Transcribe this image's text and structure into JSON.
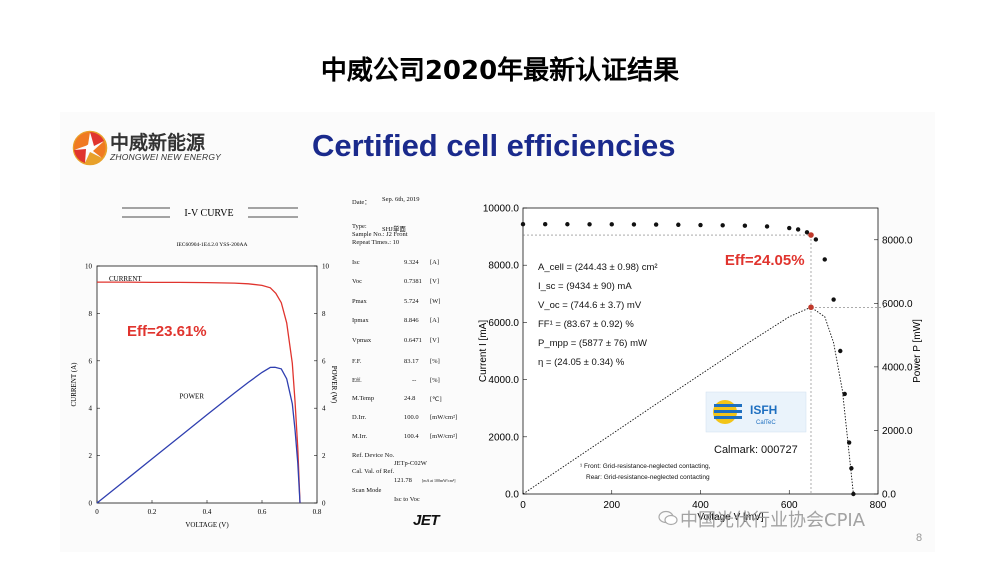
{
  "slide": {
    "title": "中威公司2020年最新认证结果",
    "page_number": "8",
    "watermark": "中国光伏行业协会CPIA"
  },
  "header": {
    "logo_cn": "中威新能源",
    "logo_en": "ZHONGWEI NEW ENERGY",
    "certified_title": "Certified cell efficiencies"
  },
  "left_report": {
    "heading": "I-V  CURVE",
    "standard": "IEC60904-1E4.2.0  YSS-200AA",
    "meta": {
      "date_label": "Date：",
      "date_value": "Sep. 6th, 2019",
      "type_label": "Type:",
      "type_value": "SHJ単面",
      "sample_label": "Sample No.: J2 Front",
      "repeat_label": "Repeat Times.: 10",
      "isc_label": "Isc",
      "isc_value": "9.324",
      "isc_unit": "[A]",
      "voc_label": "Voc",
      "voc_value": "0.7381",
      "voc_unit": "[V]",
      "pmax_label": "Pmax",
      "pmax_value": "5.724",
      "pmax_unit": "[W]",
      "ipmax_label": "Ipmax",
      "ipmax_value": "8.846",
      "ipmax_unit": "[A]",
      "vpmax_label": "Vpmax",
      "vpmax_value": "0.6471",
      "vpmax_unit": "[V]",
      "ff_label": "F.F.",
      "ff_value": "83.17",
      "ff_unit": "[%]",
      "eff_label": "Eff.",
      "eff_value": "--",
      "eff_unit": "[%]",
      "mtemp_label": "M.Temp",
      "mtemp_value": "24.8",
      "mtemp_unit": "[℃]",
      "dirr_label": "D.Irr.",
      "dirr_value": "100.0",
      "dirr_unit": "[mW/cm²]",
      "mirr_label": "M.Irr.",
      "mirr_value": "100.4",
      "mirr_unit": "[mW/cm²]",
      "ref_label": "Ref. Device No.",
      "ref_value": "JETp-C02W",
      "cal_label": "Cal. Val. of Ref.",
      "cal_value": "121.78",
      "cal_unit": "[mA at 100mW/cm²]",
      "scan_label": "Scan Mode",
      "scan_value": "Isc to Voc"
    },
    "jet_logo": "JET"
  },
  "right_report": {
    "params": [
      "A_cell = (244.43 ± 0.98) cm²",
      "I_sc = (9434 ± 90) mA",
      "V_oc = (744.6 ± 3.7) mV",
      "FF¹ = (83.67 ± 0.92) %",
      "P_mpp = (5877 ± 76) mW",
      "η = (24.05 ± 0.34) %"
    ],
    "isfh_label": "ISFH",
    "isfh_sub": "CalTeC",
    "calmark": "Calmark: 000727",
    "footnote_1": "¹ Front: Grid-resistance-neglected contacting,",
    "footnote_2": "Rear: Grid-resistance-neglected contacting"
  },
  "chart_data": [
    {
      "type": "line",
      "title": "",
      "xlabel": "VOLTAGE (V)",
      "ylabel": "CURRENT (A)",
      "y2label": "POWER (W)",
      "xlim": [
        0,
        0.8
      ],
      "ylim": [
        0,
        10
      ],
      "y2lim": [
        0,
        10
      ],
      "xticks": [
        0,
        0.2,
        0.4,
        0.6,
        0.8
      ],
      "yticks": [
        0,
        2,
        4,
        6,
        8,
        10
      ],
      "y2ticks": [
        0,
        2,
        4,
        6,
        8,
        10
      ],
      "annotation": "Eff=23.61%",
      "series": [
        {
          "name": "CURRENT",
          "color": "#e0342e",
          "x": [
            0,
            0.1,
            0.2,
            0.3,
            0.4,
            0.5,
            0.55,
            0.6,
            0.63,
            0.65,
            0.67,
            0.69,
            0.71,
            0.72,
            0.73,
            0.7381
          ],
          "y": [
            9.32,
            9.32,
            9.31,
            9.31,
            9.3,
            9.28,
            9.25,
            9.18,
            9.08,
            8.85,
            8.45,
            7.6,
            5.9,
            4.3,
            2.3,
            0
          ]
        },
        {
          "name": "POWER",
          "color": "#2f3fb0",
          "x": [
            0,
            0.1,
            0.2,
            0.3,
            0.4,
            0.5,
            0.55,
            0.6,
            0.63,
            0.6471,
            0.67,
            0.69,
            0.71,
            0.72,
            0.73,
            0.7381
          ],
          "y": [
            0,
            0.93,
            1.86,
            2.79,
            3.72,
            4.64,
            5.09,
            5.51,
            5.72,
            5.724,
            5.66,
            5.24,
            4.19,
            3.1,
            1.68,
            0
          ]
        }
      ]
    },
    {
      "type": "scatter",
      "title": "",
      "xlabel": "Voltage V [mV]",
      "ylabel": "Current I [mA]",
      "y2label": "Power P [mW]",
      "xlim": [
        0,
        800
      ],
      "ylim": [
        0,
        10000
      ],
      "y2lim": [
        0,
        9000
      ],
      "xticks": [
        0,
        200,
        400,
        600,
        800
      ],
      "yticks": [
        0.0,
        2000.0,
        4000.0,
        6000.0,
        8000.0,
        10000.0
      ],
      "y2ticks": [
        0.0,
        2000.0,
        4000.0,
        6000.0,
        8000.0
      ],
      "annotation": "Eff=24.05%",
      "mpp": {
        "voltage": 649,
        "current": 9055,
        "power": 5877
      },
      "series": [
        {
          "name": "Current",
          "color": "#111111",
          "x": [
            0,
            50,
            100,
            150,
            200,
            250,
            300,
            350,
            400,
            450,
            500,
            550,
            600,
            620,
            640,
            660,
            680,
            700,
            715,
            725,
            735,
            740,
            744.6
          ],
          "y": [
            9434,
            9434,
            9432,
            9430,
            9428,
            9425,
            9420,
            9414,
            9405,
            9395,
            9380,
            9355,
            9300,
            9250,
            9150,
            8900,
            8200,
            6800,
            5000,
            3500,
            1800,
            900,
            0
          ]
        },
        {
          "name": "Power",
          "color": "#111111",
          "x": [
            0,
            100,
            200,
            300,
            400,
            500,
            600,
            649,
            680,
            700,
            720,
            744.6
          ],
          "y": [
            0,
            943,
            1886,
            2829,
            3762,
            4690,
            5580,
            5877,
            5576,
            4760,
            3240,
            0
          ]
        }
      ]
    }
  ]
}
